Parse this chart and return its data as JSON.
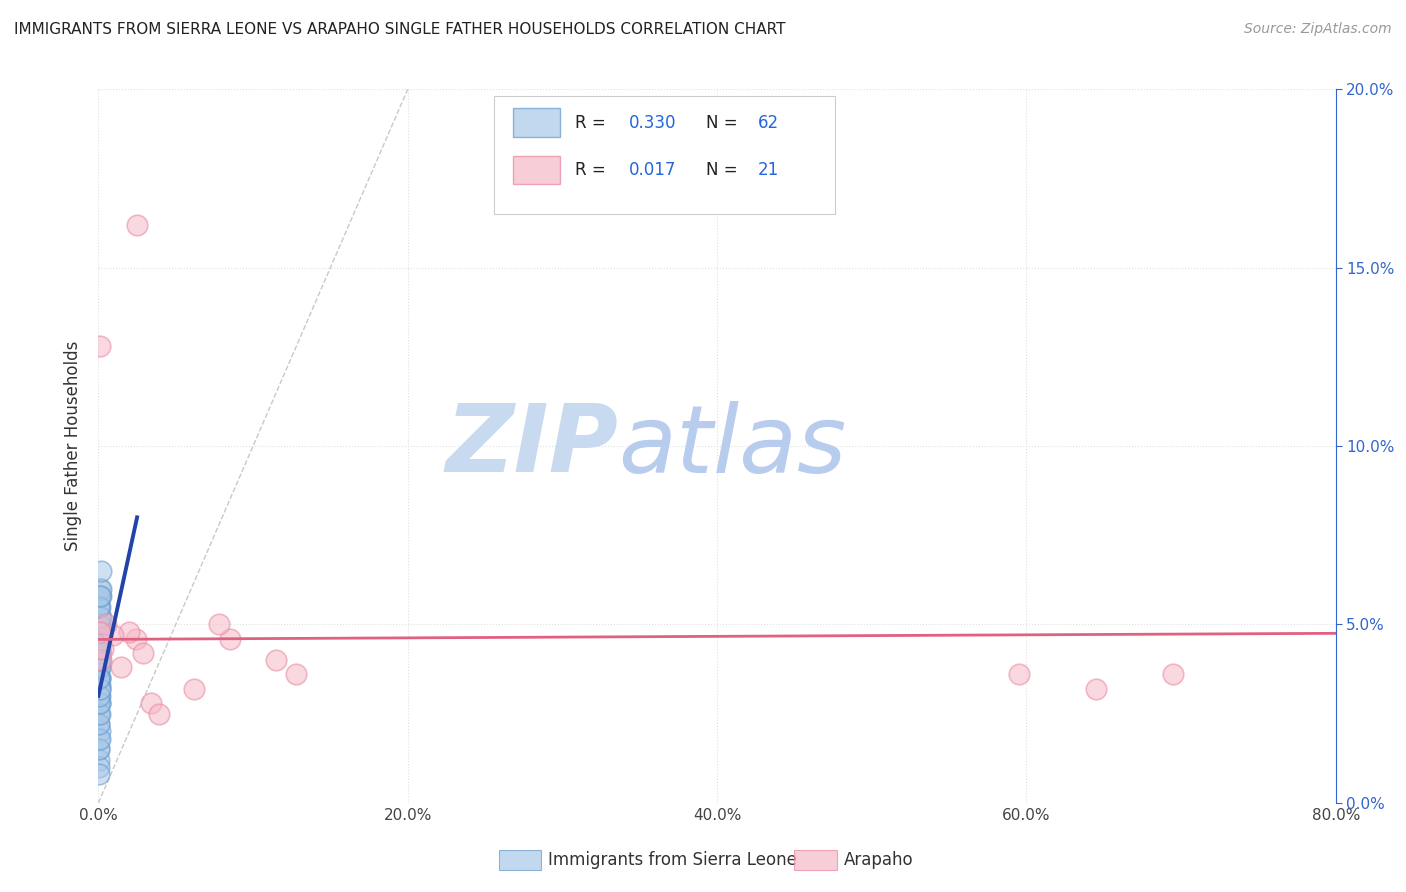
{
  "title": "IMMIGRANTS FROM SIERRA LEONE VS ARAPAHO SINGLE FATHER HOUSEHOLDS CORRELATION CHART",
  "source": "Source: ZipAtlas.com",
  "ylabel_left": "Single Father Households",
  "xlim": [
    0.0,
    0.8
  ],
  "ylim": [
    0.0,
    0.2
  ],
  "background_color": "#ffffff",
  "grid_color": "#e0e0e0",
  "watermark_line1": "ZIP",
  "watermark_line2": "atlas",
  "watermark_color": "#ccddf0",
  "blue_series": {
    "label": "Immigrants from Sierra Leone",
    "color": "#a8c8e8",
    "edge_color": "#6699cc",
    "line_color": "#2244aa",
    "R": 0.33,
    "N": 62,
    "points": [
      [
        0.0008,
        0.044
      ],
      [
        0.001,
        0.048
      ],
      [
        0.0005,
        0.03
      ],
      [
        0.0012,
        0.042
      ],
      [
        0.0007,
        0.035
      ],
      [
        0.0006,
        0.038
      ],
      [
        0.0009,
        0.033
      ],
      [
        0.0011,
        0.05
      ],
      [
        0.0004,
        0.025
      ],
      [
        0.0008,
        0.028
      ],
      [
        0.0005,
        0.032
      ],
      [
        0.001,
        0.04
      ],
      [
        0.0013,
        0.038
      ],
      [
        0.0009,
        0.042
      ],
      [
        0.0006,
        0.055
      ],
      [
        0.0011,
        0.058
      ],
      [
        0.0007,
        0.045
      ],
      [
        0.001,
        0.06
      ],
      [
        0.0012,
        0.043
      ],
      [
        0.0015,
        0.048
      ],
      [
        0.0017,
        0.052
      ],
      [
        0.0011,
        0.035
      ],
      [
        0.0008,
        0.03
      ],
      [
        0.0005,
        0.022
      ],
      [
        0.0004,
        0.018
      ],
      [
        0.0007,
        0.02
      ],
      [
        0.0003,
        0.015
      ],
      [
        0.0006,
        0.025
      ],
      [
        0.0005,
        0.028
      ],
      [
        0.0008,
        0.032
      ],
      [
        0.0004,
        0.035
      ],
      [
        0.0007,
        0.038
      ],
      [
        0.001,
        0.042
      ],
      [
        0.0008,
        0.045
      ],
      [
        0.0005,
        0.048
      ],
      [
        0.0007,
        0.05
      ],
      [
        0.0004,
        0.04
      ],
      [
        0.0008,
        0.042
      ],
      [
        0.0011,
        0.055
      ],
      [
        0.0014,
        0.058
      ],
      [
        0.0016,
        0.06
      ],
      [
        0.0018,
        0.065
      ],
      [
        0.0012,
        0.048
      ],
      [
        0.0003,
        0.012
      ],
      [
        0.0004,
        0.01
      ],
      [
        0.0006,
        0.015
      ],
      [
        0.0003,
        0.008
      ],
      [
        0.0007,
        0.018
      ],
      [
        0.0005,
        0.022
      ],
      [
        0.0008,
        0.025
      ],
      [
        0.001,
        0.028
      ],
      [
        0.0004,
        0.03
      ],
      [
        0.0007,
        0.032
      ],
      [
        0.0005,
        0.035
      ],
      [
        0.0008,
        0.04
      ],
      [
        0.0006,
        0.043
      ],
      [
        0.0009,
        0.045
      ],
      [
        0.0011,
        0.048
      ],
      [
        0.0005,
        0.05
      ],
      [
        0.0008,
        0.052
      ],
      [
        0.0006,
        0.055
      ],
      [
        0.0009,
        0.058
      ]
    ],
    "trend_x": [
      0.0,
      0.025
    ],
    "trend_y": [
      0.03,
      0.08
    ]
  },
  "pink_series": {
    "label": "Arapaho",
    "color": "#f5b8c8",
    "edge_color": "#e888a0",
    "line_color": "#e06080",
    "R": 0.017,
    "N": 21,
    "points": [
      [
        0.0008,
        0.128
      ],
      [
        0.025,
        0.162
      ],
      [
        0.085,
        0.046
      ],
      [
        0.115,
        0.04
      ],
      [
        0.128,
        0.036
      ],
      [
        0.078,
        0.05
      ],
      [
        0.062,
        0.032
      ],
      [
        0.024,
        0.046
      ],
      [
        0.029,
        0.042
      ],
      [
        0.02,
        0.048
      ],
      [
        0.0145,
        0.038
      ],
      [
        0.034,
        0.028
      ],
      [
        0.039,
        0.025
      ],
      [
        0.0095,
        0.047
      ],
      [
        0.005,
        0.05
      ],
      [
        0.595,
        0.036
      ],
      [
        0.645,
        0.032
      ],
      [
        0.695,
        0.036
      ],
      [
        0.001,
        0.048
      ],
      [
        0.0018,
        0.04
      ],
      [
        0.003,
        0.043
      ]
    ],
    "trend_x": [
      0.0,
      0.8
    ],
    "trend_y": [
      0.0458,
      0.0475
    ]
  },
  "diagonal_dashed": {
    "x": [
      0.0,
      0.2
    ],
    "y": [
      0.0,
      0.2
    ],
    "color": "#bbbbbb"
  },
  "xticks": [
    0.0,
    0.2,
    0.4,
    0.6,
    0.8
  ],
  "xlabels": [
    "0.0%",
    "20.0%",
    "40.0%",
    "60.0%",
    "80.0%"
  ],
  "yticks": [
    0.0,
    0.05,
    0.1,
    0.15,
    0.2
  ],
  "ylabels_right": [
    "0.0%",
    "5.0%",
    "10.0%",
    "15.0%",
    "20.0%"
  ]
}
